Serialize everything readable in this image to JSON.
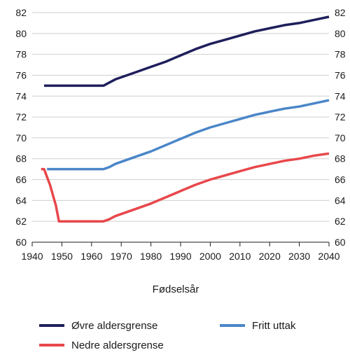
{
  "chart_data": {
    "type": "line",
    "title": "",
    "xlabel": "Fødselsår",
    "ylabel": "",
    "xlim": [
      1940,
      2040
    ],
    "ylim": [
      60,
      82
    ],
    "x_ticks": [
      1940,
      1950,
      1960,
      1970,
      1980,
      1990,
      2000,
      2010,
      2020,
      2030,
      2040
    ],
    "y_ticks": [
      60,
      62,
      64,
      66,
      68,
      70,
      72,
      74,
      76,
      78,
      80,
      82
    ],
    "y_axis_both_sides": true,
    "grid": "horizontal",
    "legend_position": "bottom",
    "series": [
      {
        "name": "Øvre aldersgrense",
        "color": "#1f1f5c",
        "points": [
          [
            1944,
            75
          ],
          [
            1964,
            75
          ],
          [
            1966,
            75.3
          ],
          [
            1968,
            75.6
          ],
          [
            1975,
            76.3
          ],
          [
            1980,
            76.8
          ],
          [
            1985,
            77.3
          ],
          [
            1990,
            77.9
          ],
          [
            1995,
            78.5
          ],
          [
            2000,
            79.0
          ],
          [
            2005,
            79.4
          ],
          [
            2010,
            79.8
          ],
          [
            2015,
            80.2
          ],
          [
            2020,
            80.5
          ],
          [
            2025,
            80.8
          ],
          [
            2030,
            81.0
          ],
          [
            2035,
            81.3
          ],
          [
            2040,
            81.6
          ]
        ]
      },
      {
        "name": "Fritt uttak",
        "color": "#4a86c8",
        "points": [
          [
            1945,
            67
          ],
          [
            1964,
            67
          ],
          [
            1966,
            67.2
          ],
          [
            1968,
            67.5
          ],
          [
            1975,
            68.2
          ],
          [
            1980,
            68.7
          ],
          [
            1985,
            69.3
          ],
          [
            1990,
            69.9
          ],
          [
            1995,
            70.5
          ],
          [
            2000,
            71.0
          ],
          [
            2005,
            71.4
          ],
          [
            2010,
            71.8
          ],
          [
            2015,
            72.2
          ],
          [
            2020,
            72.5
          ],
          [
            2025,
            72.8
          ],
          [
            2030,
            73.0
          ],
          [
            2035,
            73.3
          ],
          [
            2040,
            73.6
          ]
        ]
      },
      {
        "name": "Nedre aldersgrense",
        "color": "#e8474b",
        "points": [
          [
            1943,
            67
          ],
          [
            1944,
            67
          ],
          [
            1946,
            65.5
          ],
          [
            1948,
            63.5
          ],
          [
            1949,
            62
          ],
          [
            1964,
            62
          ],
          [
            1966,
            62.2
          ],
          [
            1968,
            62.5
          ],
          [
            1975,
            63.2
          ],
          [
            1980,
            63.7
          ],
          [
            1985,
            64.3
          ],
          [
            1990,
            64.9
          ],
          [
            1995,
            65.5
          ],
          [
            2000,
            66.0
          ],
          [
            2005,
            66.4
          ],
          [
            2010,
            66.8
          ],
          [
            2015,
            67.2
          ],
          [
            2020,
            67.5
          ],
          [
            2025,
            67.8
          ],
          [
            2030,
            68.0
          ],
          [
            2035,
            68.3
          ],
          [
            2040,
            68.5
          ]
        ]
      }
    ]
  }
}
